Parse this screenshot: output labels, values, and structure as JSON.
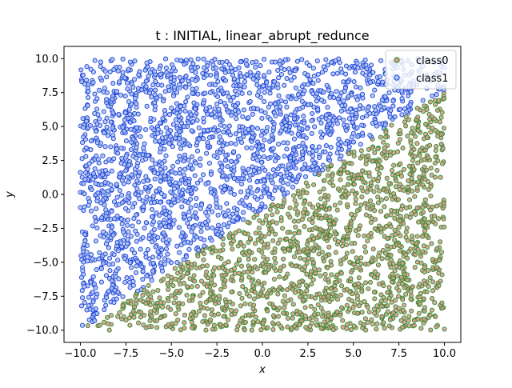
{
  "chart_data": {
    "type": "scatter",
    "title": "t : INITIAL, linear_abrupt_redunce",
    "xlabel": "x",
    "ylabel": "y",
    "xlim": [
      -10.9,
      10.9
    ],
    "ylim": [
      -10.9,
      10.9
    ],
    "xticks": [
      -10.0,
      -7.5,
      -5.0,
      -2.5,
      0.0,
      2.5,
      5.0,
      7.5,
      10.0
    ],
    "yticks": [
      -10.0,
      -7.5,
      -5.0,
      -2.5,
      0.0,
      2.5,
      5.0,
      7.5,
      10.0
    ],
    "xtick_labels": [
      "−10.0",
      "−7.5",
      "−5.0",
      "−2.5",
      "0.0",
      "2.5",
      "5.0",
      "7.5",
      "10.0"
    ],
    "ytick_labels": [
      "−10.0",
      "−7.5",
      "−5.0",
      "−2.5",
      "0.0",
      "2.5",
      "5.0",
      "7.5",
      "10.0"
    ],
    "grid": false,
    "legend_position": "top-right",
    "points_per_series_approx": 1900,
    "decision_boundary": {
      "description": "points below the line belong to class0, above to class1",
      "x": [
        -10.0,
        10.0
      ],
      "y": [
        -10.0,
        7.7
      ]
    },
    "series": [
      {
        "name": "class0",
        "face_color": "#d9998b",
        "edge_color": "#2e8b2e",
        "region": "below boundary"
      },
      {
        "name": "class1",
        "face_color": "#a8c4e8",
        "edge_color": "#1f3fe0",
        "region": "above boundary"
      }
    ]
  }
}
